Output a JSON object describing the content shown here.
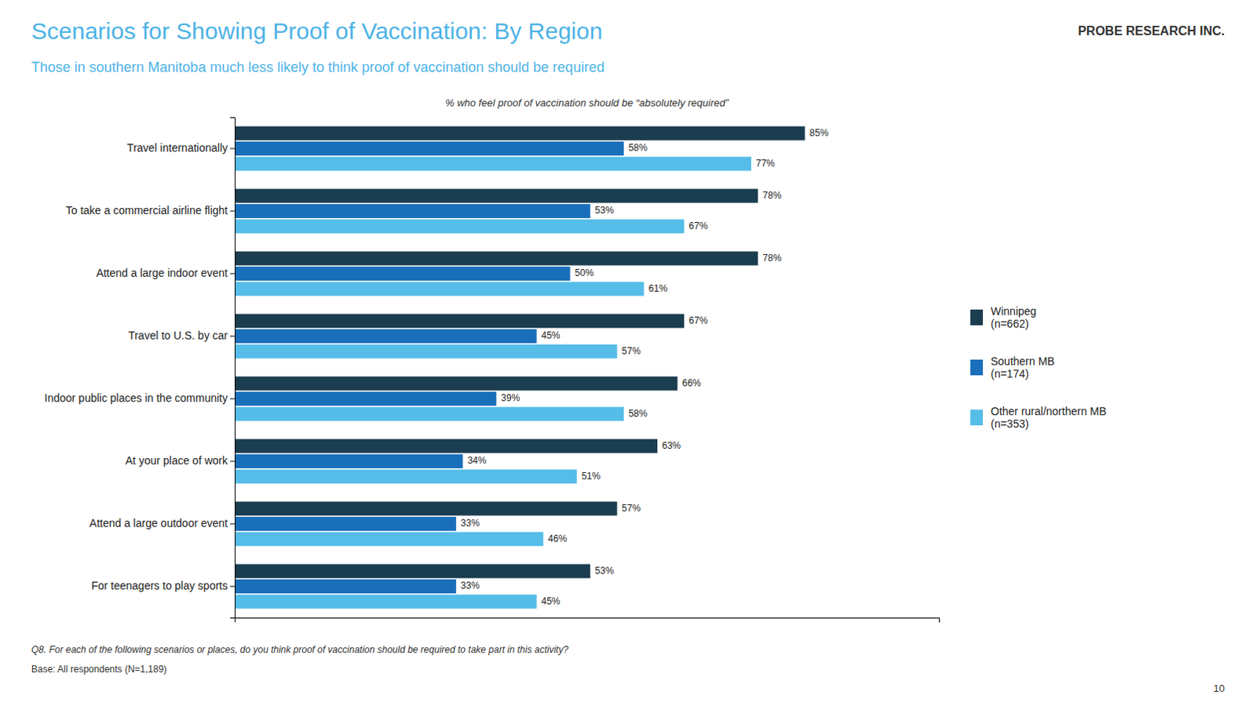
{
  "chart_data": {
    "type": "bar",
    "orientation": "horizontal",
    "title": "Scenarios for Showing Proof of Vaccination: By Region",
    "subtitle": "Those in southern Manitoba much less likely to think proof of vaccination should be required",
    "xlabel": "% who feel proof of vaccination should be “absolutely required”",
    "annotations": [
      "Q8. For each of the following scenarios or places, do you think proof of vaccination should be required to take part in this activity?",
      "Base: All respondents (N=1,189)",
      "10",
      "PROBE RESEARCH INC."
    ],
    "categories": [
      "Travel internationally",
      "To take a commercial airline flight",
      "Attend a large indoor event",
      "Travel to U.S. by car",
      "Indoor public places in the community",
      "At your place of work",
      "Attend a large outdoor event",
      "For teenagers to play sports"
    ],
    "series": [
      {
        "name": "Winnipeg\n(n=662)",
        "color": "#1b3d50",
        "values": [
          85,
          78,
          78,
          67,
          66,
          63,
          57,
          53
        ],
        "value_labels": [
          "85%",
          "78%",
          "78%",
          "67%",
          "66%",
          "63%",
          "57%",
          "53%"
        ]
      },
      {
        "name": "Southern MB\n(n=174)",
        "color": "#1a6fba",
        "values": [
          58,
          53,
          50,
          45,
          39,
          34,
          33,
          33
        ],
        "value_labels": [
          "58%",
          "53%",
          "50%",
          "45%",
          "39%",
          "34%",
          "33%",
          "33%"
        ]
      },
      {
        "name": "Other rural/northern MB\n(n=353)",
        "color": "#55bde8",
        "values": [
          77,
          67,
          61,
          57,
          58,
          51,
          46,
          45
        ],
        "value_labels": [
          "77%",
          "67%",
          "61%",
          "57%",
          "58%",
          "51%",
          "46%",
          "45%"
        ]
      }
    ],
    "xlim": [
      0,
      105
    ],
    "xticks": [],
    "tick_labels": "y",
    "data_labels": true,
    "grid": false,
    "legend": "right"
  }
}
